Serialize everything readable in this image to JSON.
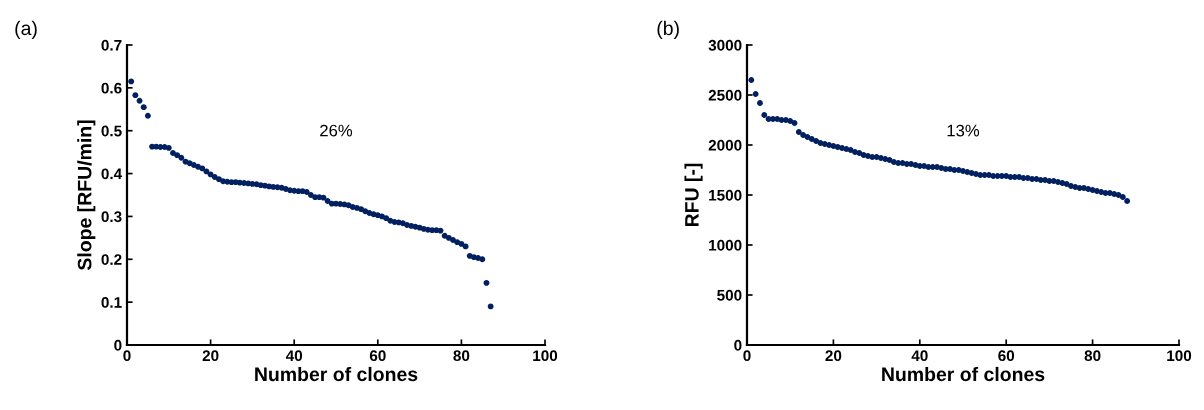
{
  "chart_data": [
    {
      "type": "scatter",
      "xlabel": "Number of clones",
      "ylabel": "Slope [RFU/min]",
      "annotations": [
        "(a)",
        "26%"
      ],
      "xlim": [
        0,
        100
      ],
      "xticks": [
        0,
        20,
        40,
        60,
        80,
        100
      ],
      "ylim": [
        0,
        0.7
      ],
      "yticks": [
        0,
        0.1,
        0.2,
        0.3,
        0.4,
        0.5,
        0.6,
        0.7
      ],
      "grid": false,
      "marker": "circle",
      "series": [
        {
          "color": "#002060",
          "x": [
            1,
            2,
            3,
            4,
            5,
            6,
            7,
            8,
            9,
            10,
            11,
            12,
            13,
            14,
            15,
            16,
            17,
            18,
            19,
            20,
            21,
            22,
            23,
            24,
            25,
            26,
            27,
            28,
            29,
            30,
            31,
            32,
            33,
            34,
            35,
            36,
            37,
            38,
            39,
            40,
            41,
            42,
            43,
            44,
            45,
            46,
            47,
            48,
            49,
            50,
            51,
            52,
            53,
            54,
            55,
            56,
            57,
            58,
            59,
            60,
            61,
            62,
            63,
            64,
            65,
            66,
            67,
            68,
            69,
            70,
            71,
            72,
            73,
            74,
            75,
            76,
            77,
            78,
            79,
            80,
            81,
            82,
            83,
            84,
            85,
            86,
            87
          ],
          "values": [
            0.615,
            0.583,
            0.57,
            0.555,
            0.535,
            0.463,
            0.463,
            0.462,
            0.462,
            0.46,
            0.448,
            0.443,
            0.437,
            0.428,
            0.424,
            0.42,
            0.416,
            0.412,
            0.405,
            0.398,
            0.392,
            0.387,
            0.382,
            0.381,
            0.38,
            0.38,
            0.379,
            0.378,
            0.377,
            0.376,
            0.375,
            0.373,
            0.372,
            0.37,
            0.369,
            0.368,
            0.367,
            0.364,
            0.361,
            0.36,
            0.359,
            0.359,
            0.357,
            0.35,
            0.345,
            0.345,
            0.344,
            0.336,
            0.33,
            0.33,
            0.329,
            0.328,
            0.326,
            0.322,
            0.32,
            0.317,
            0.312,
            0.308,
            0.305,
            0.303,
            0.3,
            0.296,
            0.29,
            0.287,
            0.286,
            0.284,
            0.28,
            0.278,
            0.276,
            0.274,
            0.271,
            0.269,
            0.268,
            0.268,
            0.267,
            0.255,
            0.25,
            0.245,
            0.24,
            0.236,
            0.23,
            0.208,
            0.205,
            0.203,
            0.2,
            0.145,
            0.09
          ]
        }
      ]
    },
    {
      "type": "scatter",
      "xlabel": "Number of clones",
      "ylabel": "RFU [-]",
      "annotations": [
        "(b)",
        "13%"
      ],
      "xlim": [
        0,
        100
      ],
      "xticks": [
        0,
        20,
        40,
        60,
        80,
        100
      ],
      "ylim": [
        0,
        3000
      ],
      "yticks": [
        0,
        500,
        1000,
        1500,
        2000,
        2500,
        3000
      ],
      "grid": false,
      "marker": "circle",
      "series": [
        {
          "color": "#002060",
          "x": [
            1,
            2,
            3,
            4,
            5,
            6,
            7,
            8,
            9,
            10,
            11,
            12,
            13,
            14,
            15,
            16,
            17,
            18,
            19,
            20,
            21,
            22,
            23,
            24,
            25,
            26,
            27,
            28,
            29,
            30,
            31,
            32,
            33,
            34,
            35,
            36,
            37,
            38,
            39,
            40,
            41,
            42,
            43,
            44,
            45,
            46,
            47,
            48,
            49,
            50,
            51,
            52,
            53,
            54,
            55,
            56,
            57,
            58,
            59,
            60,
            61,
            62,
            63,
            64,
            65,
            66,
            67,
            68,
            69,
            70,
            71,
            72,
            73,
            74,
            75,
            76,
            77,
            78,
            79,
            80,
            81,
            82,
            83,
            84,
            85,
            86,
            87,
            88
          ],
          "values": [
            2650,
            2510,
            2420,
            2300,
            2260,
            2260,
            2260,
            2250,
            2250,
            2240,
            2220,
            2130,
            2100,
            2080,
            2060,
            2040,
            2020,
            2010,
            2000,
            1990,
            1980,
            1970,
            1960,
            1950,
            1930,
            1920,
            1900,
            1890,
            1880,
            1880,
            1870,
            1860,
            1850,
            1830,
            1820,
            1820,
            1810,
            1810,
            1800,
            1790,
            1790,
            1780,
            1780,
            1780,
            1770,
            1760,
            1760,
            1750,
            1750,
            1740,
            1730,
            1720,
            1710,
            1700,
            1700,
            1700,
            1690,
            1690,
            1690,
            1690,
            1680,
            1680,
            1680,
            1670,
            1670,
            1660,
            1660,
            1650,
            1650,
            1640,
            1640,
            1630,
            1620,
            1610,
            1590,
            1580,
            1570,
            1570,
            1560,
            1550,
            1540,
            1530,
            1520,
            1520,
            1510,
            1500,
            1480,
            1440
          ]
        }
      ]
    }
  ]
}
